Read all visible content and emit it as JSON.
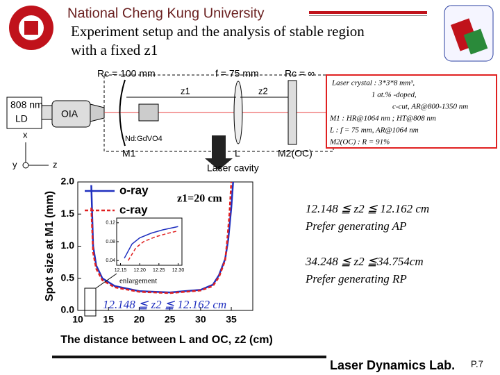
{
  "header": {
    "institution": "National Cheng Kung University",
    "title_lines": [
      "Experiment setup and the analysis of stable region",
      "with a fixed z1"
    ]
  },
  "setup": {
    "rc1": "Rc = 100 mm",
    "f": "f = 75 mm",
    "rc2": "Rc = ∞",
    "ld_line1": "808 nm",
    "ld_line2": "LD",
    "oia": "OIA",
    "crystal": "Nd:GdVO4",
    "m1": "M1",
    "l": "L",
    "m2": "M2(OC)",
    "z1": "z1",
    "z2": "z2",
    "axis_x": "x",
    "axis_y": "y",
    "axis_z": "z",
    "cavity": "Laser cavity"
  },
  "specs": [
    "Laser crystal  :  3*3*8 mm³,",
    "1 at.% -doped,",
    "c-cut,  AR@800-1350 nm",
    "M1  : HR@1064 nm ; HT@808 nm",
    "L   : f = 75 mm,  AR@1064 nm",
    "M2(OC)  : R = 91%"
  ],
  "chart": {
    "type": "line",
    "xlabel": "The distance between L and OC, z2 (cm)",
    "ylabel": "Spot size at M1 (mm)",
    "xlim": [
      10,
      38.5
    ],
    "ylim": [
      0,
      2
    ],
    "xticks": [
      10,
      15,
      20,
      25,
      30,
      35
    ],
    "yticks": [
      {
        "value": 0,
        "label": "0.0"
      },
      {
        "value": 0.5,
        "label": "0.5"
      },
      {
        "value": 1,
        "label": "1.0"
      },
      {
        "value": 1.5,
        "label": "1.5"
      },
      {
        "value": 2,
        "label": "2.0"
      }
    ],
    "series": [
      {
        "name": "o-ray",
        "color": "#1f2fbf",
        "dash": false,
        "x": [
          12.2,
          12.5,
          13,
          14,
          16,
          20,
          25,
          30,
          32,
          33,
          34,
          34.5,
          35,
          35.3
        ],
        "y": [
          1.95,
          1.0,
          0.7,
          0.5,
          0.38,
          0.3,
          0.28,
          0.32,
          0.4,
          0.55,
          0.8,
          1.1,
          1.6,
          2.0
        ]
      },
      {
        "name": "c-ray",
        "color": "#e02020",
        "dash": true,
        "x": [
          12.2,
          12.5,
          13,
          14,
          16,
          20,
          25,
          30,
          32,
          33,
          34,
          34.3,
          34.7,
          35.0
        ],
        "y": [
          1.6,
          0.9,
          0.65,
          0.47,
          0.36,
          0.29,
          0.27,
          0.31,
          0.38,
          0.52,
          0.78,
          1.05,
          1.5,
          2.0
        ]
      }
    ],
    "inset": {
      "xlim": [
        12.14,
        12.31
      ],
      "ylim": [
        0.03,
        0.13
      ],
      "xticks": [
        {
          "value": 12.15,
          "label": "12.15"
        },
        {
          "value": 12.2,
          "label": "12.20"
        },
        {
          "value": 12.25,
          "label": "12.25"
        },
        {
          "value": 12.3,
          "label": "12.30"
        }
      ],
      "yticks": [
        {
          "value": 0.04,
          "label": "0.04"
        },
        {
          "value": 0.08,
          "label": "0.08"
        },
        {
          "value": 0.12,
          "label": "0.12"
        }
      ],
      "series": [
        {
          "x": [
            12.16,
            12.18,
            12.2,
            12.23,
            12.26,
            12.3
          ],
          "y": [
            0.045,
            0.075,
            0.088,
            0.098,
            0.105,
            0.112
          ]
        },
        {
          "x": [
            12.17,
            12.19,
            12.21,
            12.24,
            12.27,
            12.3
          ],
          "y": [
            0.04,
            0.067,
            0.08,
            0.09,
            0.097,
            0.103
          ]
        }
      ]
    },
    "annotations": {
      "z1": "z1=20 cm",
      "range": "12.148 ≦ z2 ≦ 12.162 cm",
      "enlargement": "enlargement"
    }
  },
  "notes": [
    {
      "range": "12.148 ≦ z2 ≦ 12.162 cm",
      "text": "Prefer generating AP"
    },
    {
      "range": "34.248 ≦ z2 ≦34.754cm",
      "text": "Prefer generating RP"
    }
  ],
  "footer": {
    "lab": "Laser Dynamics Lab.",
    "page": "P.7"
  }
}
